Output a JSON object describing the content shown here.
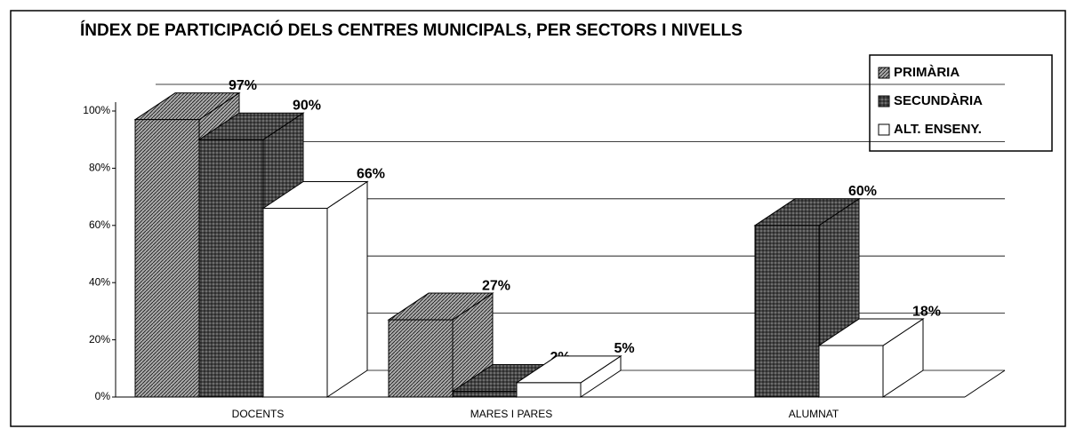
{
  "chart_data": {
    "type": "bar3d",
    "title": "ÍNDEX DE PARTICIPACIÓ DELS CENTRES MUNICIPALS, PER SECTORS I NIVELLS",
    "categories": [
      "DOCENTS",
      "MARES I PARES",
      "ALUMNAT"
    ],
    "series": [
      {
        "name": "PRIMÀRIA",
        "color": "#a8a8a8",
        "values": [
          97,
          27,
          null
        ],
        "value_labels": [
          "97%",
          "27%",
          null
        ]
      },
      {
        "name": "SECUNDÀRIA",
        "color": "#6e6e6e",
        "values": [
          90,
          2,
          60
        ],
        "value_labels": [
          "90%",
          "2%",
          "60%"
        ]
      },
      {
        "name": "ALT. ENSENY.",
        "color": "#ffffff",
        "values": [
          66,
          5,
          18
        ],
        "value_labels": [
          "66%",
          "5%",
          "18%"
        ]
      }
    ],
    "ylim": [
      0,
      100
    ],
    "yticks": [
      {
        "value": 0,
        "label": "0%"
      },
      {
        "value": 20,
        "label": "20%"
      },
      {
        "value": 40,
        "label": "40%"
      },
      {
        "value": 60,
        "label": "60%"
      },
      {
        "value": 80,
        "label": "80%"
      },
      {
        "value": 100,
        "label": "100%"
      }
    ],
    "grid": true
  }
}
